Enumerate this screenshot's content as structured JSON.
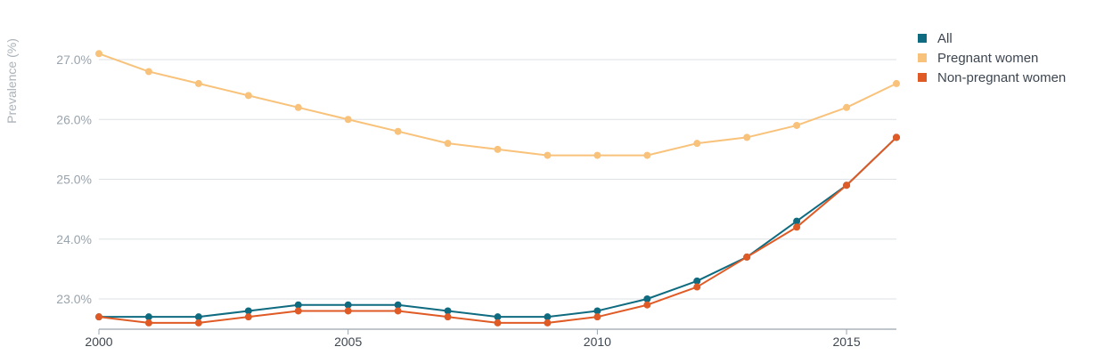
{
  "chart_data": {
    "type": "line",
    "title": "",
    "xlabel": "",
    "ylabel": "Prevalence (%)",
    "x": [
      2000,
      2001,
      2002,
      2003,
      2004,
      2005,
      2006,
      2007,
      2008,
      2009,
      2010,
      2011,
      2012,
      2013,
      2014,
      2015,
      2016
    ],
    "xlim": [
      2000,
      2016
    ],
    "ylim": [
      22.5,
      27.2
    ],
    "xticks": [
      2000,
      2005,
      2010,
      2015
    ],
    "xtick_labels": [
      "2000",
      "2005",
      "2010",
      "2015"
    ],
    "yticks": [
      23.0,
      24.0,
      25.0,
      26.0,
      27.0
    ],
    "ytick_labels": [
      "23.0%",
      "24.0%",
      "25.0%",
      "26.0%",
      "27.0%"
    ],
    "grid": true,
    "legend_position": "top-right",
    "series": [
      {
        "name": "All",
        "color": "#0f6b80",
        "values": [
          22.7,
          22.7,
          22.7,
          22.8,
          22.9,
          22.9,
          22.9,
          22.8,
          22.7,
          22.7,
          22.8,
          23.0,
          23.3,
          23.7,
          24.3,
          24.9,
          25.7
        ]
      },
      {
        "name": "Pregnant women",
        "color": "#f9c27a",
        "values": [
          27.1,
          26.8,
          26.6,
          26.4,
          26.2,
          26.0,
          25.8,
          25.6,
          25.5,
          25.4,
          25.4,
          25.4,
          25.6,
          25.7,
          25.9,
          26.2,
          26.6
        ]
      },
      {
        "name": "Non-pregnant women",
        "color": "#e05a25",
        "values": [
          22.7,
          22.6,
          22.6,
          22.7,
          22.8,
          22.8,
          22.8,
          22.7,
          22.6,
          22.6,
          22.7,
          22.9,
          23.2,
          23.7,
          24.2,
          24.9,
          25.7
        ]
      }
    ],
    "colors": {
      "grid": "#dde2e6",
      "axis": "#9aa4ad",
      "tick_text": "#9aa4ad",
      "x_tick_text": "#3f4750",
      "axis_title": "#aab2b9",
      "legend_text": "#3d4650"
    }
  }
}
